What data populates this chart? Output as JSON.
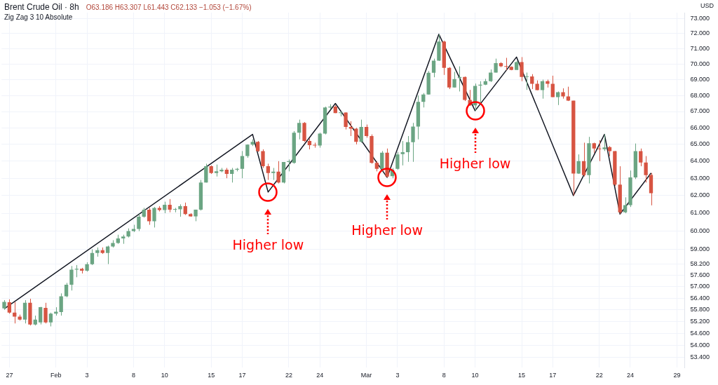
{
  "chart_data": {
    "type": "candlestick",
    "title": "Brent Crude Oil · 8h",
    "subtitle": "Zig Zag 3 10 Absolute",
    "ylabel": "USD",
    "categories": [
      null,
      "27",
      null,
      null,
      null,
      null,
      null,
      null,
      null,
      null,
      "Feb",
      null,
      null,
      null,
      null,
      null,
      "3",
      null,
      null,
      null,
      null,
      null,
      null,
      null,
      null,
      "8",
      null,
      null,
      null,
      null,
      null,
      "10",
      null,
      null,
      null,
      null,
      null,
      null,
      null,
      null,
      "15",
      null,
      null,
      null,
      null,
      null,
      "17",
      null,
      null,
      null,
      null,
      null,
      null,
      null,
      null,
      "22",
      null,
      null,
      null,
      null,
      null,
      "24",
      null,
      null,
      null,
      null,
      null,
      null,
      null,
      null,
      "Mar",
      null,
      null,
      null,
      null,
      null,
      "3",
      null,
      null,
      null,
      null,
      null,
      null,
      null,
      null,
      "8",
      null,
      null,
      null,
      null,
      null,
      "10",
      null,
      null,
      null,
      null,
      null,
      null,
      null,
      null,
      "15",
      null,
      null,
      null,
      null,
      null,
      "17",
      null,
      null,
      null,
      null,
      null,
      null,
      null,
      null,
      "22",
      null,
      null,
      null,
      null,
      null,
      "24",
      null,
      null,
      null,
      null,
      null,
      null,
      null,
      null,
      "29",
      null
    ],
    "ohlc": [
      [
        55.87,
        56.3,
        55.8,
        56.21
      ],
      [
        56.19,
        56.34,
        55.6,
        55.65
      ],
      [
        55.65,
        56.2,
        55.1,
        55.45
      ],
      [
        55.45,
        55.55,
        55.25,
        55.3
      ],
      [
        55.3,
        56.3,
        55.1,
        56.16
      ],
      [
        56.16,
        56.37,
        55.0,
        55.05
      ],
      [
        55.05,
        55.5,
        55.0,
        55.3
      ],
      [
        55.15,
        55.95,
        55.05,
        55.93
      ],
      [
        55.9,
        56.16,
        55.1,
        55.15
      ],
      [
        55.15,
        55.65,
        54.95,
        55.6
      ],
      [
        55.6,
        55.93,
        55.5,
        55.7
      ],
      [
        55.68,
        56.65,
        55.5,
        56.5
      ],
      [
        56.5,
        57.2,
        56.45,
        57.1
      ],
      [
        57.1,
        58.1,
        56.8,
        57.9
      ],
      [
        57.9,
        58.15,
        57.5,
        57.95
      ],
      [
        57.95,
        58.0,
        57.7,
        57.85
      ],
      [
        57.85,
        58.3,
        57.8,
        58.2
      ],
      [
        58.2,
        59.0,
        58.15,
        58.8
      ],
      [
        58.8,
        59.1,
        58.6,
        58.95
      ],
      [
        58.95,
        59.1,
        58.75,
        58.8
      ],
      [
        58.8,
        59.2,
        58.2,
        59.15
      ],
      [
        59.15,
        59.5,
        59.1,
        59.35
      ],
      [
        59.35,
        59.8,
        59.3,
        59.6
      ],
      [
        59.6,
        59.8,
        59.3,
        59.7
      ],
      [
        59.7,
        60.15,
        59.65,
        60.0
      ],
      [
        60.0,
        60.35,
        59.95,
        60.12
      ],
      [
        60.12,
        60.95,
        60.0,
        60.8
      ],
      [
        60.8,
        61.3,
        60.75,
        61.2
      ],
      [
        61.2,
        61.3,
        60.35,
        60.55
      ],
      [
        60.55,
        61.35,
        60.2,
        61.3
      ],
      [
        61.3,
        61.4,
        61.1,
        61.18
      ],
      [
        61.18,
        61.65,
        61.0,
        61.48
      ],
      [
        61.48,
        61.8,
        61.05,
        61.2
      ],
      [
        61.2,
        61.3,
        61.05,
        61.22
      ],
      [
        61.22,
        61.5,
        60.8,
        61.4
      ],
      [
        61.4,
        61.6,
        60.9,
        60.95
      ],
      [
        60.95,
        61.0,
        60.8,
        60.82
      ],
      [
        60.82,
        61.2,
        60.55,
        61.2
      ],
      [
        61.2,
        62.9,
        61.15,
        62.75
      ],
      [
        62.75,
        63.85,
        62.75,
        63.7
      ],
      [
        63.7,
        63.75,
        63.25,
        63.3
      ],
      [
        63.3,
        63.8,
        63.1,
        63.4
      ],
      [
        63.4,
        63.6,
        63.35,
        63.5
      ],
      [
        63.5,
        63.6,
        63.0,
        63.25
      ],
      [
        63.25,
        63.6,
        62.75,
        63.5
      ],
      [
        63.5,
        63.6,
        63.4,
        63.55
      ],
      [
        63.55,
        64.6,
        63.0,
        64.3
      ],
      [
        64.3,
        65.0,
        64.2,
        64.98
      ],
      [
        64.98,
        65.3,
        64.9,
        65.15
      ],
      [
        65.15,
        65.2,
        64.55,
        64.6
      ],
      [
        64.6,
        64.7,
        63.6,
        63.7
      ],
      [
        63.7,
        63.85,
        62.9,
        63.3
      ],
      [
        63.3,
        63.6,
        62.9,
        63.38
      ],
      [
        63.38,
        64.0,
        62.7,
        62.75
      ],
      [
        62.75,
        63.95,
        62.7,
        63.95
      ],
      [
        63.95,
        64.1,
        63.4,
        64.0
      ],
      [
        63.9,
        65.8,
        63.85,
        65.7
      ],
      [
        65.7,
        66.5,
        65.3,
        66.3
      ],
      [
        66.3,
        66.35,
        65.15,
        65.2
      ],
      [
        65.2,
        65.35,
        64.7,
        64.95
      ],
      [
        64.97,
        65.1,
        64.8,
        64.93
      ],
      [
        64.93,
        65.7,
        64.8,
        65.65
      ],
      [
        65.65,
        67.3,
        65.6,
        67.25
      ],
      [
        67.25,
        67.45,
        67.15,
        67.3
      ],
      [
        67.3,
        67.4,
        66.9,
        66.9
      ],
      [
        66.9,
        67.0,
        66.7,
        66.93
      ],
      [
        66.93,
        66.95,
        65.9,
        66.05
      ],
      [
        66.05,
        66.4,
        65.5,
        65.95
      ],
      [
        65.95,
        66.0,
        65.0,
        65.15
      ],
      [
        65.15,
        66.5,
        65.1,
        66.05
      ],
      [
        66.05,
        66.2,
        65.4,
        65.5
      ],
      [
        65.5,
        65.6,
        63.85,
        63.9
      ],
      [
        63.9,
        64.0,
        63.4,
        63.55
      ],
      [
        63.55,
        64.6,
        63.4,
        64.5
      ],
      [
        64.5,
        64.75,
        63.05,
        63.1
      ],
      [
        63.12,
        63.6,
        63.0,
        63.5
      ],
      [
        63.55,
        64.55,
        63.5,
        64.4
      ],
      [
        64.42,
        65.2,
        63.75,
        64.53
      ],
      [
        64.53,
        65.5,
        63.96,
        65.13
      ],
      [
        65.13,
        66.3,
        63.96,
        66.07
      ],
      [
        66.07,
        68.0,
        65.3,
        67.6
      ],
      [
        67.6,
        68.15,
        67.25,
        68.06
      ],
      [
        68.06,
        69.55,
        68.05,
        69.44
      ],
      [
        69.44,
        70.35,
        69.15,
        70.22
      ],
      [
        70.22,
        71.95,
        70.2,
        71.47
      ],
      [
        71.47,
        71.52,
        69.3,
        69.75
      ],
      [
        69.75,
        69.8,
        68.4,
        68.5
      ],
      [
        68.5,
        69.5,
        68.5,
        69.03
      ],
      [
        69.1,
        69.85,
        68.25,
        69.17
      ],
      [
        69.17,
        69.2,
        67.65,
        67.72
      ],
      [
        67.72,
        68.35,
        67.35,
        67.38
      ],
      [
        67.38,
        68.75,
        67.05,
        68.6
      ],
      [
        68.62,
        68.9,
        67.5,
        68.68
      ],
      [
        68.68,
        69.05,
        68.65,
        68.9
      ],
      [
        68.9,
        69.65,
        68.85,
        69.45
      ],
      [
        69.45,
        70.35,
        69.45,
        70.06
      ],
      [
        70.06,
        70.12,
        69.8,
        69.86
      ],
      [
        69.86,
        70.4,
        69.6,
        69.82
      ],
      [
        69.82,
        69.85,
        69.6,
        69.62
      ],
      [
        69.62,
        70.2,
        69.62,
        70.13
      ],
      [
        70.13,
        70.45,
        68.9,
        69.17
      ],
      [
        69.17,
        69.45,
        68.35,
        69.2
      ],
      [
        69.2,
        69.35,
        68.4,
        68.74
      ],
      [
        68.74,
        68.95,
        68.33,
        68.33
      ],
      [
        68.33,
        69.0,
        67.8,
        68.9
      ],
      [
        68.9,
        69.0,
        68.5,
        68.74
      ],
      [
        68.74,
        69.25,
        67.9,
        67.9
      ],
      [
        67.9,
        68.25,
        67.4,
        68.2
      ],
      [
        68.2,
        68.45,
        67.8,
        67.94
      ],
      [
        67.94,
        68.55,
        67.65,
        67.67
      ],
      [
        67.67,
        67.67,
        62.0,
        63.27
      ],
      [
        63.27,
        64.4,
        63.25,
        64.0
      ],
      [
        64.0,
        65.1,
        63.1,
        63.18
      ],
      [
        63.18,
        65.45,
        62.7,
        65.07
      ],
      [
        65.07,
        65.1,
        64.5,
        64.75
      ],
      [
        64.75,
        65.25,
        64.0,
        64.71
      ],
      [
        64.71,
        65.6,
        64.6,
        64.82
      ],
      [
        64.84,
        64.9,
        64.3,
        64.6
      ],
      [
        64.6,
        64.6,
        62.55,
        62.63
      ],
      [
        62.63,
        63.7,
        60.95,
        61.05
      ],
      [
        61.05,
        61.9,
        61.0,
        61.46
      ],
      [
        61.46,
        63.45,
        61.35,
        63.05
      ],
      [
        63.05,
        65.05,
        62.95,
        64.6
      ],
      [
        64.6,
        64.75,
        63.7,
        63.92
      ],
      [
        63.92,
        64.3,
        62.75,
        63.18
      ],
      [
        63.186,
        63.307,
        61.443,
        62.133
      ],
      null,
      null,
      null,
      null,
      null,
      null
    ],
    "series": [
      {
        "type": "line",
        "color": "#131722",
        "values": [
          55.85,
          null,
          null,
          null,
          null,
          null,
          null,
          null,
          null,
          null,
          null,
          null,
          null,
          null,
          null,
          null,
          null,
          null,
          null,
          null,
          null,
          null,
          null,
          null,
          null,
          null,
          null,
          null,
          null,
          null,
          null,
          null,
          null,
          null,
          null,
          null,
          null,
          null,
          null,
          null,
          null,
          null,
          null,
          null,
          null,
          null,
          null,
          null,
          65.6,
          null,
          null,
          62.2,
          null,
          null,
          null,
          null,
          null,
          null,
          null,
          null,
          null,
          null,
          null,
          null,
          67.5,
          null,
          null,
          null,
          null,
          null,
          null,
          null,
          null,
          null,
          63.05,
          null,
          null,
          null,
          null,
          null,
          null,
          null,
          null,
          null,
          71.95,
          null,
          null,
          null,
          null,
          null,
          null,
          67.05,
          null,
          null,
          null,
          null,
          null,
          null,
          null,
          70.45,
          null,
          null,
          null,
          null,
          null,
          null,
          null,
          null,
          null,
          null,
          62.0,
          null,
          null,
          null,
          null,
          null,
          65.6,
          null,
          null,
          60.95,
          null,
          null,
          null,
          null,
          null,
          63.3,
          null,
          null,
          null,
          null,
          null,
          null
        ]
      }
    ],
    "log": true,
    "grid": true,
    "ylim": [
      52.9,
      73.4
    ],
    "yticks": [
      {
        "value": 53.4,
        "label": "53.400"
      },
      {
        "value": 54,
        "label": "54.000"
      },
      {
        "value": 54.6,
        "label": "54.600"
      },
      {
        "value": 55.2,
        "label": "55.200"
      },
      {
        "value": 55.8,
        "label": "55.800"
      },
      {
        "value": 56.4,
        "label": "56.400"
      },
      {
        "value": 57,
        "label": "57.000"
      },
      {
        "value": 57.6,
        "label": "57.600"
      },
      {
        "value": 58.2,
        "label": "58.200"
      },
      {
        "value": 59,
        "label": "59.000"
      },
      {
        "value": 60,
        "label": "60.000"
      },
      {
        "value": 61,
        "label": "61.000"
      },
      {
        "value": 62,
        "label": "62.000"
      },
      {
        "value": 63,
        "label": "63.000"
      },
      {
        "value": 64,
        "label": "64.000"
      },
      {
        "value": 65,
        "label": "65.000"
      },
      {
        "value": 66,
        "label": "66.000"
      },
      {
        "value": 67,
        "label": "67.000"
      },
      {
        "value": 68,
        "label": "68.000"
      },
      {
        "value": 69,
        "label": "69.000"
      },
      {
        "value": 70,
        "label": "70.000"
      },
      {
        "value": 71,
        "label": "71.000"
      },
      {
        "value": 72,
        "label": "72.000"
      },
      {
        "value": 73,
        "label": "73.000"
      }
    ],
    "annotations": [
      "O63.186 H63.307 L61.443 C62.133 −1.053 (−1.67%)",
      "Higher low",
      "Higher low",
      "Higher low"
    ]
  }
}
